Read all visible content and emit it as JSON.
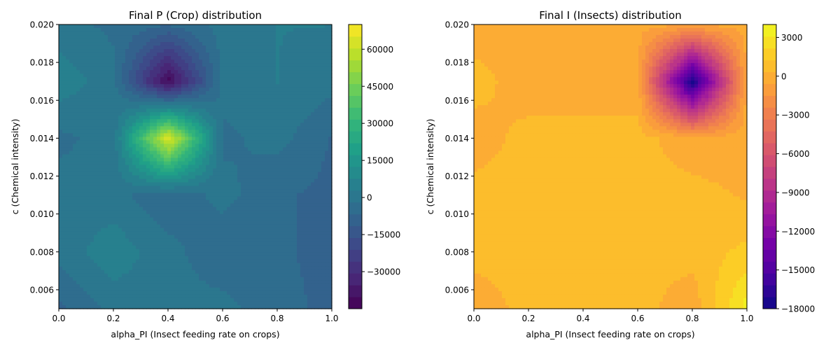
{
  "chart_data": [
    {
      "type": "heatmap",
      "subtype": "filled-contour",
      "title": "Final P (Crop) distribution",
      "xlabel": "alpha_PI (Insect feeding rate on crops)",
      "ylabel": "c (Chemical intensity)",
      "xlim": [
        0.0,
        1.0
      ],
      "ylim": [
        0.005,
        0.02
      ],
      "x_ticks": [
        "0.0",
        "0.2",
        "0.4",
        "0.6",
        "0.8",
        "1.0"
      ],
      "y_ticks": [
        "0.006",
        "0.008",
        "0.010",
        "0.012",
        "0.014",
        "0.016",
        "0.018",
        "0.020"
      ],
      "colormap": "viridis",
      "colorbar": {
        "range": [
          -45000,
          70000
        ],
        "ticks": [
          "−30000",
          "−15000",
          "0",
          "15000",
          "30000",
          "45000",
          "60000"
        ]
      },
      "x": [
        0.0,
        0.2,
        0.4,
        0.6,
        0.8,
        1.0
      ],
      "y": [
        0.005,
        0.008,
        0.011,
        0.014,
        0.017,
        0.02
      ],
      "values": [
        [
          -8000,
          0,
          0,
          0,
          -5000,
          -8000
        ],
        [
          0,
          6000,
          0,
          -6000,
          -6000,
          -8000
        ],
        [
          0,
          0,
          -6000,
          0,
          -6000,
          -8000
        ],
        [
          -3000,
          0,
          66000,
          -3000,
          0,
          -7000
        ],
        [
          6000,
          0,
          -43000,
          0,
          3000,
          0
        ],
        [
          0,
          -3000,
          -6000,
          0,
          3000,
          3000
        ]
      ]
    },
    {
      "type": "heatmap",
      "subtype": "filled-contour",
      "title": "Final I (Insects) distribution",
      "xlabel": "alpha_PI (Insect feeding rate on crops)",
      "ylabel": "c (Chemical intensity)",
      "xlim": [
        0.0,
        1.0
      ],
      "ylim": [
        0.005,
        0.02
      ],
      "x_ticks": [
        "0.0",
        "0.2",
        "0.4",
        "0.6",
        "0.8",
        "1.0"
      ],
      "y_ticks": [
        "0.006",
        "0.008",
        "0.010",
        "0.012",
        "0.014",
        "0.016",
        "0.018",
        "0.020"
      ],
      "colormap": "plasma",
      "colorbar": {
        "range": [
          -18000,
          4000
        ],
        "ticks": [
          "−18000",
          "−15000",
          "−12000",
          "−9000",
          "−6000",
          "−3000",
          "0",
          "3000"
        ]
      },
      "x": [
        0.0,
        0.2,
        0.4,
        0.6,
        0.8,
        1.0
      ],
      "y": [
        0.005,
        0.008,
        0.011,
        0.014,
        0.017,
        0.02
      ],
      "values": [
        [
          -300,
          700,
          700,
          700,
          -300,
          3500
        ],
        [
          700,
          700,
          700,
          700,
          700,
          1500
        ],
        [
          700,
          700,
          700,
          700,
          700,
          200
        ],
        [
          -200,
          700,
          700,
          700,
          -300,
          -200
        ],
        [
          800,
          -300,
          -300,
          -300,
          -17800,
          -300
        ],
        [
          -300,
          -300,
          -300,
          -300,
          -300,
          -300
        ]
      ]
    }
  ]
}
